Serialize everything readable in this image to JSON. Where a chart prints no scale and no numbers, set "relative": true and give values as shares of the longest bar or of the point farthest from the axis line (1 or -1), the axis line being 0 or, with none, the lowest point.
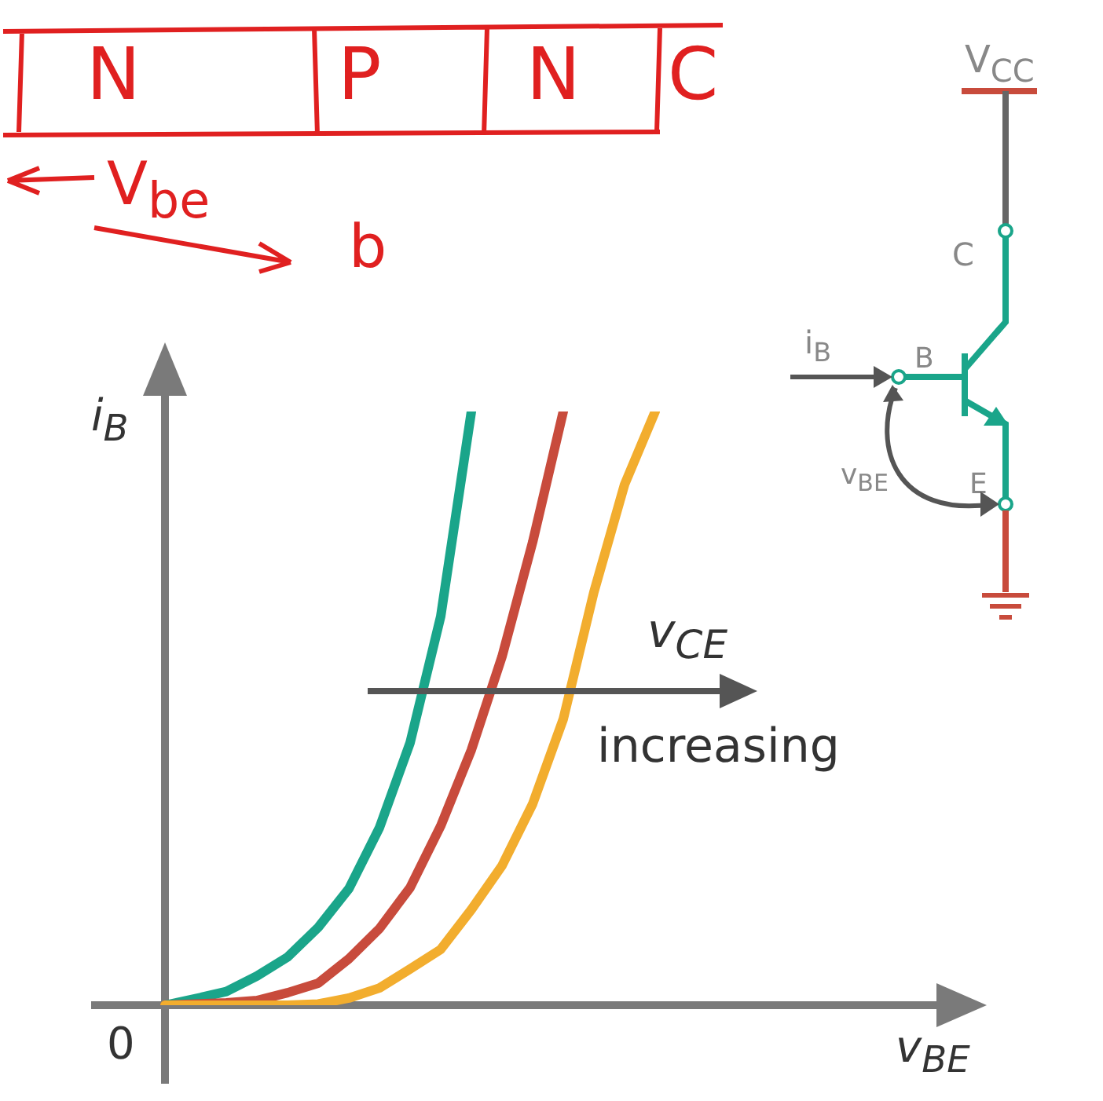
{
  "chart_data": {
    "type": "line",
    "relative": true,
    "xlabel": "v$_{BE}$",
    "ylabel": "i$_{B}$",
    "categories": [
      null,
      null,
      null,
      null,
      null,
      null,
      null,
      null,
      null,
      null,
      null,
      null,
      null,
      null,
      null,
      null,
      null,
      null,
      null,
      null,
      null,
      null,
      null,
      null,
      null,
      null,
      null
    ],
    "series": [
      {
        "color": "#1aa58a",
        "values": [
          0,
          0.011,
          0.023,
          0.049,
          0.081,
          0.131,
          0.196,
          0.299,
          0.442,
          0.655,
          1,
          null,
          null,
          null,
          null,
          null,
          null,
          null,
          null,
          null,
          null,
          null,
          null,
          null,
          null,
          null,
          null
        ]
      },
      {
        "color": "#c84b3c",
        "values": [
          0,
          0.002,
          0.004,
          0.008,
          0.021,
          0.037,
          0.078,
          0.129,
          0.198,
          0.302,
          0.43,
          0.587,
          0.78,
          1,
          null,
          null,
          null,
          null,
          null,
          null,
          null,
          null,
          null,
          null,
          null,
          null,
          null
        ]
      },
      {
        "color": "#f2ad2e",
        "values": [
          0,
          0,
          0,
          0,
          0,
          0.002,
          0.012,
          0.029,
          0.061,
          0.094,
          0.161,
          0.235,
          0.339,
          0.482,
          0.696,
          0.877,
          1,
          null,
          null,
          null,
          null,
          null,
          null,
          null,
          null,
          null,
          null
        ]
      }
    ],
    "annotations": [
      "0",
      "v$_{CE}$",
      "increasing",
      "N",
      "P",
      "N",
      "C",
      "V$_{be}$",
      "b",
      "V$_{CC}$",
      "C",
      "i$_{B}$",
      "B",
      "v$_{BE}$",
      "E"
    ]
  }
}
